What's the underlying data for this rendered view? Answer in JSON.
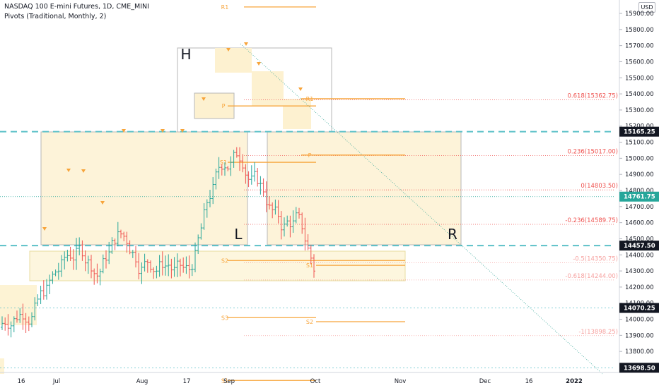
{
  "header": {
    "title": "NASDAQ 100 E-mini Futures, 1D, CME_MINI",
    "indicator": "Pivots (Traditional, Monthly, 2)"
  },
  "currency": "USD",
  "chart_data": {
    "type": "ohlc",
    "y_range": [
      13610,
      15960
    ],
    "y_ticks": [
      13700,
      13800,
      13900,
      14000,
      14100,
      14200,
      14300,
      14400,
      14500,
      14600,
      14700,
      14800,
      14900,
      15000,
      15100,
      15200,
      15300,
      15400,
      15500,
      15600,
      15700,
      15800,
      15900
    ],
    "x_axis_labels": [
      "16",
      "Jul",
      "Aug",
      "17",
      "Sep",
      "Oct",
      "Nov",
      "Dec",
      "16",
      "2022"
    ],
    "price_labels": [
      {
        "value": 15165.25,
        "text": "15165.25",
        "style": "dark"
      },
      {
        "value": 14761.75,
        "text": "14761.75",
        "style": "green"
      },
      {
        "value": 14457.5,
        "text": "14457.50",
        "style": "dark"
      },
      {
        "value": 14070.25,
        "text": "14070.25",
        "style": "dark"
      },
      {
        "value": 13698.5,
        "text": "13698.50",
        "style": "dark"
      }
    ],
    "support_resistance": [
      15165.25,
      14457.5
    ],
    "fibonacci": [
      {
        "label": "0.618(15362.75)",
        "value": 15362.75
      },
      {
        "label": "0.236(15017.00)",
        "value": 15017.0
      },
      {
        "label": "0(14803.50)",
        "value": 14803.5
      },
      {
        "label": "-0.236(14589.75)",
        "value": 14589.75
      },
      {
        "label": "-0.5(14350.75)",
        "value": 14350.75
      },
      {
        "label": "-0.618(14244.00)",
        "value": 14244.0
      },
      {
        "label": "-1(13898.25)",
        "value": 13898.25
      }
    ],
    "pivots": [
      {
        "label": "R1",
        "value": 15940
      },
      {
        "label": "P",
        "value": 15325
      },
      {
        "label": "S1",
        "value": 14975
      },
      {
        "label": "S2",
        "value": 14365
      },
      {
        "label": "S3",
        "value": 14010
      },
      {
        "label": "R1",
        "value": 15370
      },
      {
        "label": "P",
        "value": 15020
      },
      {
        "label": "S1",
        "value": 14335
      },
      {
        "label": "S2",
        "value": 13985
      },
      {
        "label": "S1",
        "value": 13620
      }
    ],
    "pattern_labels": [
      "H",
      "L",
      "R"
    ],
    "colors": {
      "up": "#26a69a",
      "down": "#ef5350",
      "pivot": "#f7a43a",
      "dashed": "#5bc0c8",
      "fib": "#ef5350"
    }
  }
}
